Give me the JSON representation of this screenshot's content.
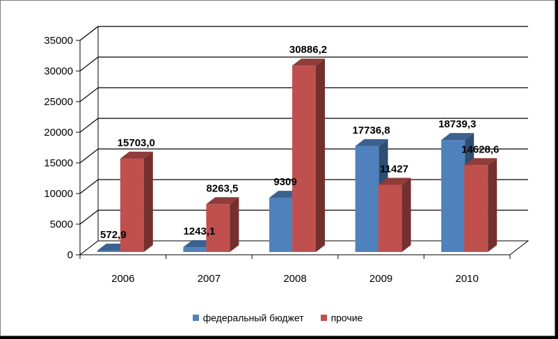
{
  "chart_data": {
    "type": "bar",
    "categories": [
      "2006",
      "2007",
      "2008",
      "2009",
      "2010"
    ],
    "series": [
      {
        "name": "федеральный бюджет",
        "color": "#4F81BD",
        "values": [
          572.9,
          1243.1,
          9309,
          17736.8,
          18739.3
        ],
        "labels": [
          "572,9",
          "1243,1",
          "9309",
          "17736,8",
          "18739,3"
        ]
      },
      {
        "name": "прочие",
        "color": "#C0504D",
        "values": [
          15703.0,
          8263.5,
          30886.2,
          11427,
          14628.6
        ],
        "labels": [
          "15703,0",
          "8263,5",
          "30886,2",
          "11427",
          "14628,6"
        ]
      }
    ],
    "ylim": [
      0,
      35000
    ],
    "yticks": [
      0,
      5000,
      10000,
      15000,
      20000,
      25000,
      30000,
      35000
    ],
    "grid": true,
    "legend": "bottom"
  }
}
